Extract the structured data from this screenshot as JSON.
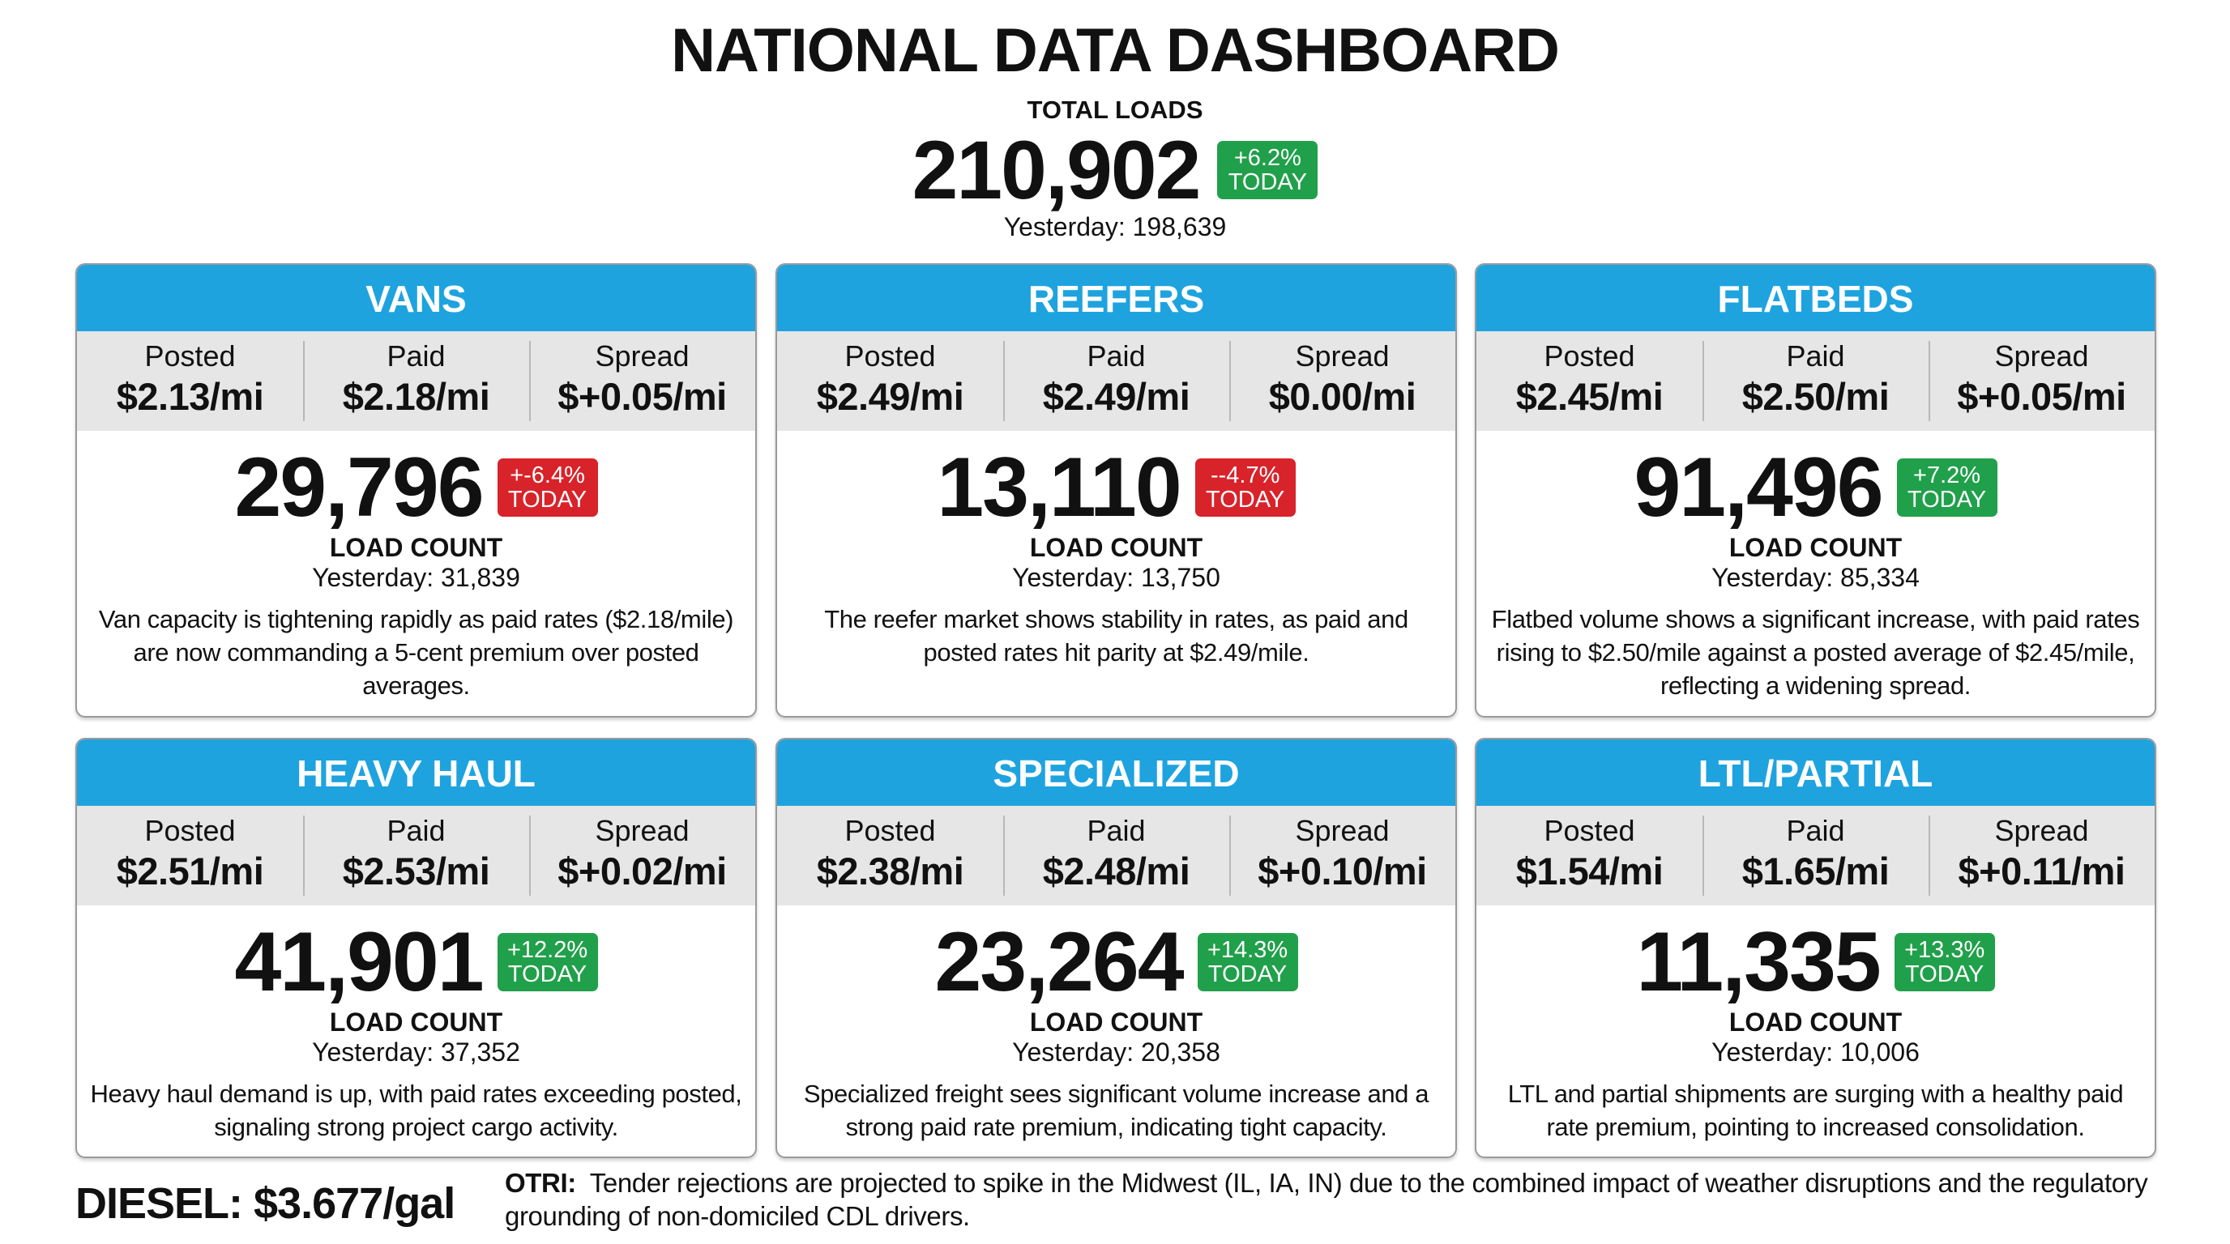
{
  "header": {
    "title": "NATIONAL DATA DASHBOARD",
    "total_label": "TOTAL LOADS",
    "total_value": "210,902",
    "total_change": "+6.2%",
    "total_change_sub": "TODAY",
    "total_yesterday": "Yesterday: 198,639"
  },
  "colors": {
    "header_blue": "#1ea3df",
    "up_green": "#20a04a",
    "down_red": "#d8232a",
    "rates_band": "#e6e6e6"
  },
  "labels": {
    "posted": "Posted",
    "paid": "Paid",
    "spread": "Spread",
    "load_count": "LOAD COUNT",
    "today": "TODAY"
  },
  "cards": [
    {
      "title": "VANS",
      "posted": "$2.13/mi",
      "paid": "$2.18/mi",
      "spread": "$+0.05/mi",
      "count": "29,796",
      "change": "+-6.4%",
      "direction": "down",
      "yesterday": "Yesterday: 31,839",
      "description": "Van capacity is tightening rapidly as paid rates ($2.18/mile) are now commanding a 5-cent premium over posted averages."
    },
    {
      "title": "REEFERS",
      "posted": "$2.49/mi",
      "paid": "$2.49/mi",
      "spread": "$0.00/mi",
      "count": "13,110",
      "change": "--4.7%",
      "direction": "down",
      "yesterday": "Yesterday: 13,750",
      "description": "The reefer market shows stability in rates, as paid and posted rates hit parity at $2.49/mile."
    },
    {
      "title": "FLATBEDS",
      "posted": "$2.45/mi",
      "paid": "$2.50/mi",
      "spread": "$+0.05/mi",
      "count": "91,496",
      "change": "+7.2%",
      "direction": "up",
      "yesterday": "Yesterday: 85,334",
      "description": "Flatbed volume shows a significant increase, with paid rates rising to $2.50/mile against a posted average of $2.45/mile, reflecting a widening spread."
    },
    {
      "title": "HEAVY HAUL",
      "posted": "$2.51/mi",
      "paid": "$2.53/mi",
      "spread": "$+0.02/mi",
      "count": "41,901",
      "change": "+12.2%",
      "direction": "up",
      "yesterday": "Yesterday: 37,352",
      "description": "Heavy haul demand is up, with paid rates exceeding posted, signaling strong project cargo activity."
    },
    {
      "title": "SPECIALIZED",
      "posted": "$2.38/mi",
      "paid": "$2.48/mi",
      "spread": "$+0.10/mi",
      "count": "23,264",
      "change": "+14.3%",
      "direction": "up",
      "yesterday": "Yesterday: 20,358",
      "description": "Specialized freight sees significant volume increase and a strong paid rate premium, indicating tight capacity."
    },
    {
      "title": "LTL/PARTIAL",
      "posted": "$1.54/mi",
      "paid": "$1.65/mi",
      "spread": "$+0.11/mi",
      "count": "11,335",
      "change": "+13.3%",
      "direction": "up",
      "yesterday": "Yesterday: 10,006",
      "description": "LTL and partial shipments are surging with a healthy paid rate premium, pointing to increased consolidation."
    }
  ],
  "footer": {
    "diesel": "DIESEL: $3.677/gal",
    "otri_label": "OTRI:",
    "otri_text": "Tender rejections are projected to spike in the Midwest (IL, IA, IN) due to the combined impact of weather disruptions and the regulatory grounding of non-domiciled CDL drivers."
  }
}
